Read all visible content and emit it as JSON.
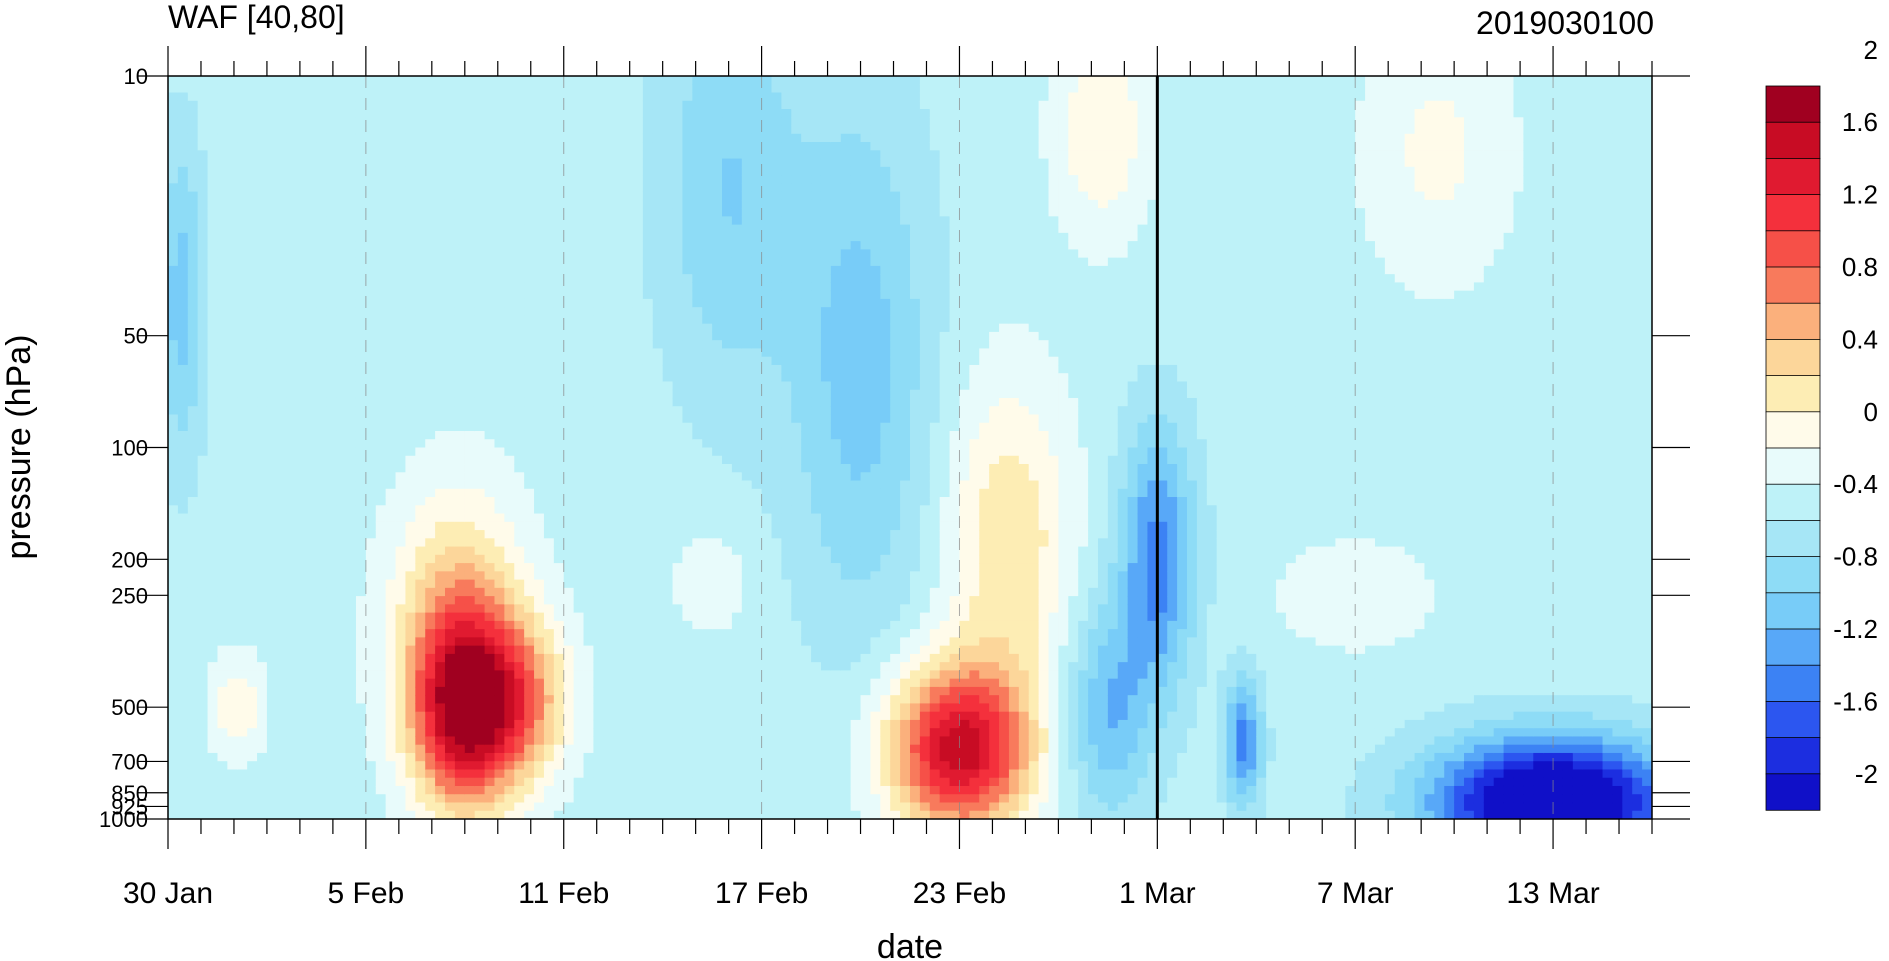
{
  "chart_data": {
    "type": "heatmap",
    "title": "WAF [40,80]",
    "right_title": "2019030100",
    "xlabel": "date",
    "ylabel": "pressure (hPa)",
    "x_start": "30 Jan 2019",
    "x_range_days": [
      0,
      45
    ],
    "x_ticks": [
      {
        "day": 0,
        "label": "30 Jan"
      },
      {
        "day": 6,
        "label": "5 Feb"
      },
      {
        "day": 12,
        "label": "11 Feb"
      },
      {
        "day": 18,
        "label": "17 Feb"
      },
      {
        "day": 24,
        "label": "23 Feb"
      },
      {
        "day": 30,
        "label": "1 Mar"
      },
      {
        "day": 36,
        "label": "7 Mar"
      },
      {
        "day": 42,
        "label": "13 Mar"
      }
    ],
    "y_ticks": [
      {
        "p": 10,
        "label": "10"
      },
      {
        "p": 50,
        "label": "50"
      },
      {
        "p": 100,
        "label": "100"
      },
      {
        "p": 200,
        "label": "200"
      },
      {
        "p": 250,
        "label": "250"
      },
      {
        "p": 500,
        "label": "500"
      },
      {
        "p": 700,
        "label": "700"
      },
      {
        "p": 850,
        "label": "850"
      },
      {
        "p": 925,
        "label": "925"
      },
      {
        "p": 1000,
        "label": "1000"
      }
    ],
    "y_range_hPa": [
      1000,
      10
    ],
    "y_scale": "log",
    "vertical_line_day": 30,
    "colorbar": {
      "colors": [
        "#1010c8",
        "#1c2ee0",
        "#2c56f0",
        "#3c82f4",
        "#58a8f8",
        "#78ccf8",
        "#8edcf6",
        "#a6e6f6",
        "#bef2f8",
        "#e8fbfb",
        "#fffbea",
        "#fdedb4",
        "#fcd69a",
        "#fbb07c",
        "#f87a5c",
        "#f65048",
        "#f4303c",
        "#e01a30",
        "#c80c24",
        "#a00020"
      ],
      "labels": [
        "-2",
        "-1.6",
        "-1.2",
        "-0.8",
        "-0.4",
        "0",
        "0.4",
        "0.8",
        "1.2",
        "1.6",
        "2"
      ]
    },
    "field_blobs": [
      {
        "day": 9,
        "p": 520,
        "amp": 1.9,
        "sd_day": 1.1,
        "sd_logp": 0.18
      },
      {
        "day": 8.8,
        "p": 300,
        "amp": 0.9,
        "sd_day": 1.4,
        "sd_logp": 0.25
      },
      {
        "day": 10.8,
        "p": 480,
        "amp": 0.9,
        "sd_day": 1.0,
        "sd_logp": 0.15
      },
      {
        "day": 24,
        "p": 650,
        "amp": 2.0,
        "sd_day": 1.5,
        "sd_logp": 0.16
      },
      {
        "day": 25.5,
        "p": 180,
        "amp": 0.7,
        "sd_day": 1.3,
        "sd_logp": 0.3
      },
      {
        "day": 28.3,
        "p": 14,
        "amp": 0.5,
        "sd_day": 1.0,
        "sd_logp": 0.2
      },
      {
        "day": 38.5,
        "p": 16,
        "amp": 0.35,
        "sd_day": 1.6,
        "sd_logp": 0.25
      },
      {
        "day": 2.1,
        "p": 500,
        "amp": 0.45,
        "sd_day": 0.6,
        "sd_logp": 0.1
      },
      {
        "day": 16.5,
        "p": 230,
        "amp": 0.25,
        "sd_day": 0.9,
        "sd_logp": 0.1
      },
      {
        "day": 36,
        "p": 250,
        "amp": 0.3,
        "sd_day": 1.6,
        "sd_logp": 0.1
      },
      {
        "day": 42,
        "p": 900,
        "amp": -2.2,
        "sd_day": 2.5,
        "sd_logp": 0.12
      },
      {
        "day": 30,
        "p": 200,
        "amp": -1.0,
        "sd_day": 0.8,
        "sd_logp": 0.25
      },
      {
        "day": 28.5,
        "p": 520,
        "amp": -0.7,
        "sd_day": 0.9,
        "sd_logp": 0.2
      },
      {
        "day": 32.6,
        "p": 620,
        "amp": -1.0,
        "sd_day": 0.4,
        "sd_logp": 0.12
      },
      {
        "day": 0.4,
        "p": 40,
        "amp": -0.6,
        "sd_day": 0.5,
        "sd_logp": 0.3
      },
      {
        "day": 17,
        "p": 20,
        "amp": -0.5,
        "sd_day": 1.5,
        "sd_logp": 0.4
      },
      {
        "day": 21,
        "p": 60,
        "amp": -0.6,
        "sd_day": 1.5,
        "sd_logp": 0.5
      }
    ],
    "field_background": -0.3
  }
}
